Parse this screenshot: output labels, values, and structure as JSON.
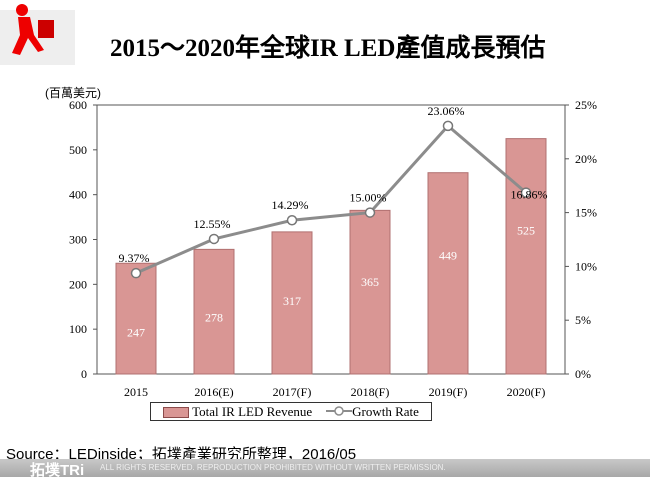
{
  "header": {
    "title": "2015～2020年全球IR LED產值成長預估"
  },
  "chart_data": {
    "type": "bar",
    "categories": [
      "2015",
      "2016(E)",
      "2017(F)",
      "2018(F)",
      "2019(F)",
      "2020(F)"
    ],
    "series": [
      {
        "name": "Total IR LED Revenue",
        "type": "bar",
        "axis": "left",
        "values": [
          247,
          278,
          317,
          365,
          449,
          525
        ],
        "labels": [
          "247",
          "278",
          "317",
          "365",
          "449",
          "525"
        ],
        "color": "#d99694"
      },
      {
        "name": "Growth Rate",
        "type": "line",
        "axis": "right",
        "values": [
          9.37,
          12.55,
          14.29,
          15.0,
          23.06,
          16.86
        ],
        "labels": [
          "9.37%",
          "12.55%",
          "14.29%",
          "15.00%",
          "23.06%",
          "16.86%"
        ],
        "color": "#8c8c8c"
      }
    ],
    "ylabel": "(百萬美元)",
    "ylim": [
      0,
      600
    ],
    "y_ticks": [
      "0",
      "100",
      "200",
      "300",
      "400",
      "500",
      "600"
    ],
    "y2lim": [
      0,
      25
    ],
    "y2_ticks": [
      "0%",
      "5%",
      "10%",
      "15%",
      "20%",
      "25%"
    ],
    "grid": false,
    "legend": "bottom"
  },
  "footer": {
    "source": "Source：LEDinside；拓墣產業研究所整理，2016/05",
    "brand": "拓墣TRi",
    "rights": "ALL RIGHTS RESERVED. REPRODUCTION PROHIBITED WITHOUT WRITTEN PERMISSION."
  }
}
